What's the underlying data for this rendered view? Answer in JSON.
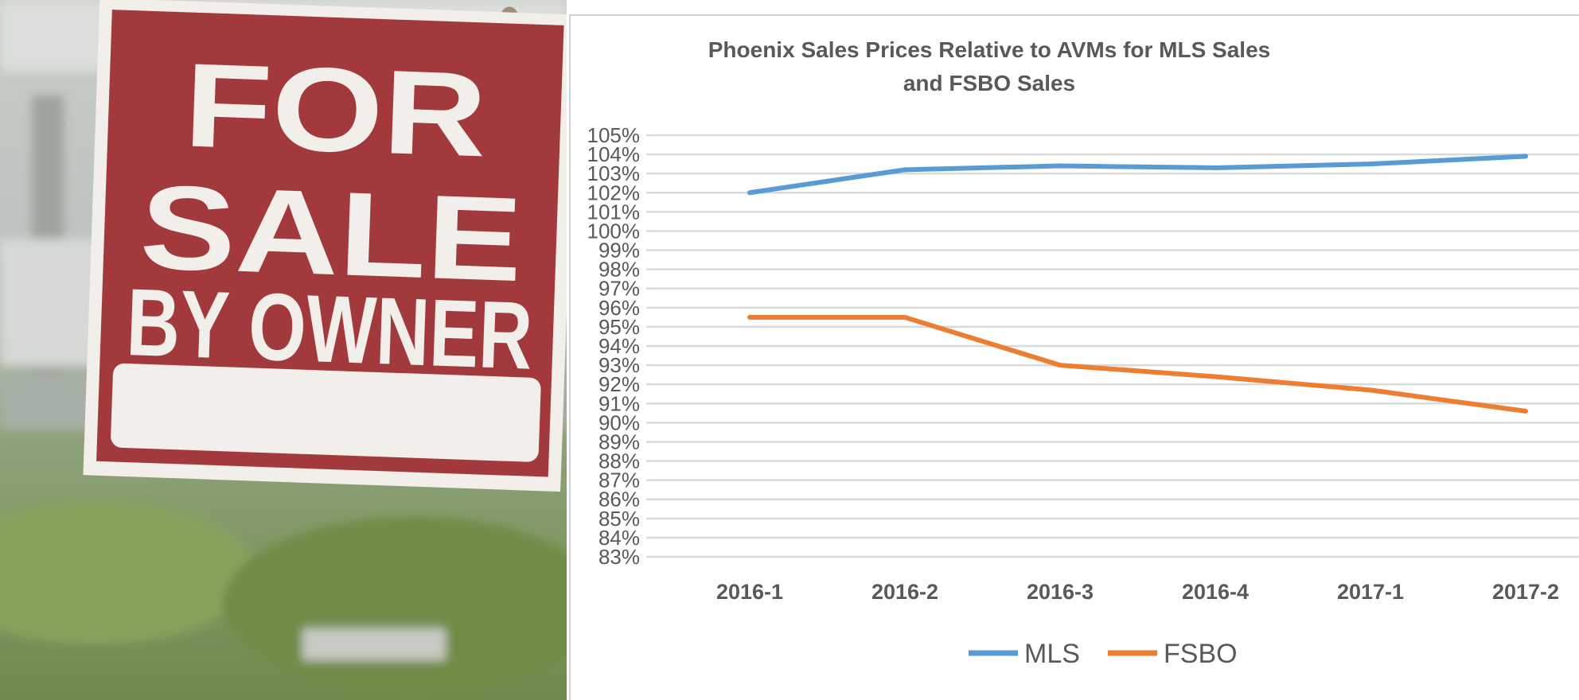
{
  "photo": {
    "sign_line1": "FOR",
    "sign_line2": "SALE",
    "sign_line3": "BY OWNER",
    "colors": {
      "sign_red": "#a23a3d",
      "sign_white": "#f2eee9",
      "grass": "#7d9a56"
    }
  },
  "chart_data": {
    "type": "line",
    "title_line1": "Phoenix Sales Prices Relative to AVMs for MLS Sales",
    "title_line2": "and FSBO Sales",
    "categories": [
      "2016-1",
      "2016-2",
      "2016-3",
      "2016-4",
      "2017-1",
      "2017-2"
    ],
    "series": [
      {
        "name": "MLS",
        "color": "#5b9bd5",
        "values": [
          102.0,
          103.2,
          103.4,
          103.3,
          103.5,
          103.9
        ]
      },
      {
        "name": "FSBO",
        "color": "#ed7d31",
        "values": [
          95.5,
          95.5,
          93.0,
          92.4,
          91.7,
          90.6
        ]
      }
    ],
    "ylim": [
      83,
      105
    ],
    "ytick_step": 1,
    "ytick_suffix": "%",
    "grid": true,
    "legend": "bottom"
  }
}
